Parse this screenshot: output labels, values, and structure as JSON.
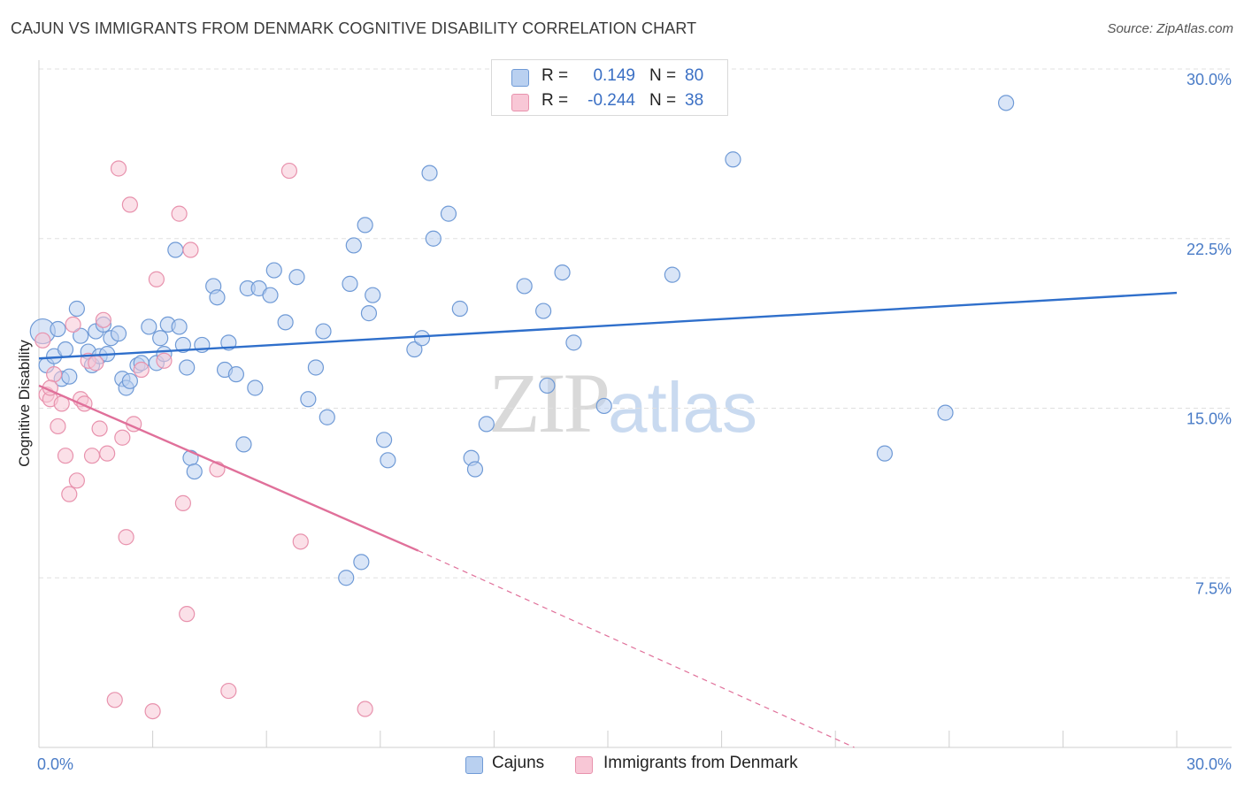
{
  "header": {
    "title": "CAJUN VS IMMIGRANTS FROM DENMARK COGNITIVE DISABILITY CORRELATION CHART",
    "source": "Source: ZipAtlas.com"
  },
  "watermark": {
    "zip": "ZIP",
    "atlas": "atlas"
  },
  "legend_top": {
    "rows": [
      {
        "r_label": "R =",
        "r_value": "0.149",
        "n_label": "N =",
        "n_value": "80"
      },
      {
        "r_label": "R =",
        "r_value": "-0.244",
        "n_label": "N =",
        "n_value": "38"
      }
    ]
  },
  "legend_bottom": {
    "items": [
      {
        "label": "Cajuns"
      },
      {
        "label": "Immigrants from Denmark"
      }
    ]
  },
  "colors": {
    "blue_fill": "#b9d0f0",
    "blue_stroke": "#6f9ad6",
    "blue_line": "#2f6fcb",
    "pink_fill": "#f8c7d6",
    "pink_stroke": "#e892ad",
    "pink_line": "#e0709a",
    "grid": "#e0e0e0",
    "tick_label": "#4a7cc7"
  },
  "chart_data": {
    "type": "scatter",
    "title": "CAJUN VS IMMIGRANTS FROM DENMARK COGNITIVE DISABILITY CORRELATION CHART",
    "xlabel": "",
    "ylabel": "Cognitive Disability",
    "xlim": [
      0,
      30
    ],
    "ylim": [
      0,
      30
    ],
    "x_tick_labels": [
      "0.0%",
      "30.0%"
    ],
    "y_ticks": [
      7.5,
      15.0,
      22.5,
      30.0
    ],
    "y_tick_labels": [
      "7.5%",
      "15.0%",
      "22.5%",
      "30.0%"
    ],
    "grid": true,
    "legend_position": "top-center",
    "series": [
      {
        "name": "Cajuns",
        "r": 0.149,
        "n": 80,
        "trend": {
          "x": [
            0,
            30
          ],
          "y": [
            17.2,
            20.1
          ]
        },
        "points": [
          [
            0.1,
            18.4
          ],
          [
            0.2,
            16.9
          ],
          [
            0.4,
            17.3
          ],
          [
            0.5,
            18.5
          ],
          [
            0.6,
            16.3
          ],
          [
            0.7,
            17.6
          ],
          [
            0.8,
            16.4
          ],
          [
            1.0,
            19.4
          ],
          [
            1.1,
            18.2
          ],
          [
            1.3,
            17.5
          ],
          [
            1.4,
            16.9
          ],
          [
            1.5,
            18.4
          ],
          [
            1.6,
            17.3
          ],
          [
            1.7,
            18.7
          ],
          [
            1.8,
            17.4
          ],
          [
            1.9,
            18.1
          ],
          [
            2.1,
            18.3
          ],
          [
            2.2,
            16.3
          ],
          [
            2.3,
            15.9
          ],
          [
            2.4,
            16.2
          ],
          [
            2.6,
            16.9
          ],
          [
            2.7,
            17.0
          ],
          [
            2.9,
            18.6
          ],
          [
            3.1,
            17.0
          ],
          [
            3.2,
            18.1
          ],
          [
            3.3,
            17.4
          ],
          [
            3.4,
            18.7
          ],
          [
            3.6,
            22.0
          ],
          [
            3.7,
            18.6
          ],
          [
            3.8,
            17.8
          ],
          [
            3.9,
            16.8
          ],
          [
            4.0,
            12.8
          ],
          [
            4.1,
            12.2
          ],
          [
            4.3,
            17.8
          ],
          [
            4.6,
            20.4
          ],
          [
            4.7,
            19.9
          ],
          [
            4.9,
            16.7
          ],
          [
            5.0,
            17.9
          ],
          [
            5.2,
            16.5
          ],
          [
            5.4,
            13.4
          ],
          [
            5.5,
            20.3
          ],
          [
            5.7,
            15.9
          ],
          [
            5.8,
            20.3
          ],
          [
            6.1,
            20.0
          ],
          [
            6.2,
            21.1
          ],
          [
            6.5,
            18.8
          ],
          [
            6.8,
            20.8
          ],
          [
            7.1,
            15.4
          ],
          [
            7.3,
            16.8
          ],
          [
            7.5,
            18.4
          ],
          [
            7.6,
            14.6
          ],
          [
            8.1,
            7.5
          ],
          [
            8.2,
            20.5
          ],
          [
            8.3,
            22.2
          ],
          [
            8.5,
            8.2
          ],
          [
            8.6,
            23.1
          ],
          [
            8.7,
            19.2
          ],
          [
            8.8,
            20.0
          ],
          [
            9.1,
            13.6
          ],
          [
            9.2,
            12.7
          ],
          [
            9.9,
            17.6
          ],
          [
            10.1,
            18.1
          ],
          [
            10.3,
            25.4
          ],
          [
            10.4,
            22.5
          ],
          [
            10.8,
            23.6
          ],
          [
            11.1,
            19.4
          ],
          [
            11.4,
            12.8
          ],
          [
            11.5,
            12.3
          ],
          [
            11.8,
            14.3
          ],
          [
            12.8,
            20.4
          ],
          [
            13.3,
            19.3
          ],
          [
            13.4,
            16.0
          ],
          [
            13.8,
            21.0
          ],
          [
            14.1,
            17.9
          ],
          [
            14.9,
            15.1
          ],
          [
            16.7,
            20.9
          ],
          [
            18.3,
            26.0
          ],
          [
            22.3,
            13.0
          ],
          [
            23.9,
            14.8
          ],
          [
            25.5,
            28.5
          ]
        ]
      },
      {
        "name": "Immigrants from Denmark",
        "r": -0.244,
        "n": 38,
        "trend": {
          "x": [
            0,
            10
          ],
          "y": [
            16.0,
            8.7
          ],
          "dashed_x": [
            10,
            21.5
          ],
          "dashed_y": [
            8.7,
            0.0
          ]
        },
        "points": [
          [
            0.1,
            18.0
          ],
          [
            0.2,
            15.6
          ],
          [
            0.3,
            15.4
          ],
          [
            0.4,
            16.5
          ],
          [
            0.5,
            14.2
          ],
          [
            0.6,
            15.2
          ],
          [
            0.7,
            12.9
          ],
          [
            0.8,
            11.2
          ],
          [
            0.9,
            18.7
          ],
          [
            1.0,
            11.8
          ],
          [
            1.1,
            15.4
          ],
          [
            1.2,
            15.2
          ],
          [
            1.3,
            17.1
          ],
          [
            1.4,
            12.9
          ],
          [
            1.5,
            17.0
          ],
          [
            1.6,
            14.1
          ],
          [
            1.7,
            18.9
          ],
          [
            1.8,
            13.0
          ],
          [
            2.0,
            2.1
          ],
          [
            2.1,
            25.6
          ],
          [
            2.2,
            13.7
          ],
          [
            2.3,
            9.3
          ],
          [
            2.4,
            24.0
          ],
          [
            2.5,
            14.3
          ],
          [
            2.7,
            16.7
          ],
          [
            3.0,
            1.6
          ],
          [
            3.1,
            20.7
          ],
          [
            3.3,
            17.1
          ],
          [
            3.7,
            23.6
          ],
          [
            3.8,
            10.8
          ],
          [
            3.9,
            5.9
          ],
          [
            4.0,
            22.0
          ],
          [
            4.7,
            12.3
          ],
          [
            5.0,
            2.5
          ],
          [
            6.6,
            25.5
          ],
          [
            6.9,
            9.1
          ],
          [
            8.6,
            1.7
          ],
          [
            0.3,
            15.9
          ]
        ]
      }
    ]
  }
}
